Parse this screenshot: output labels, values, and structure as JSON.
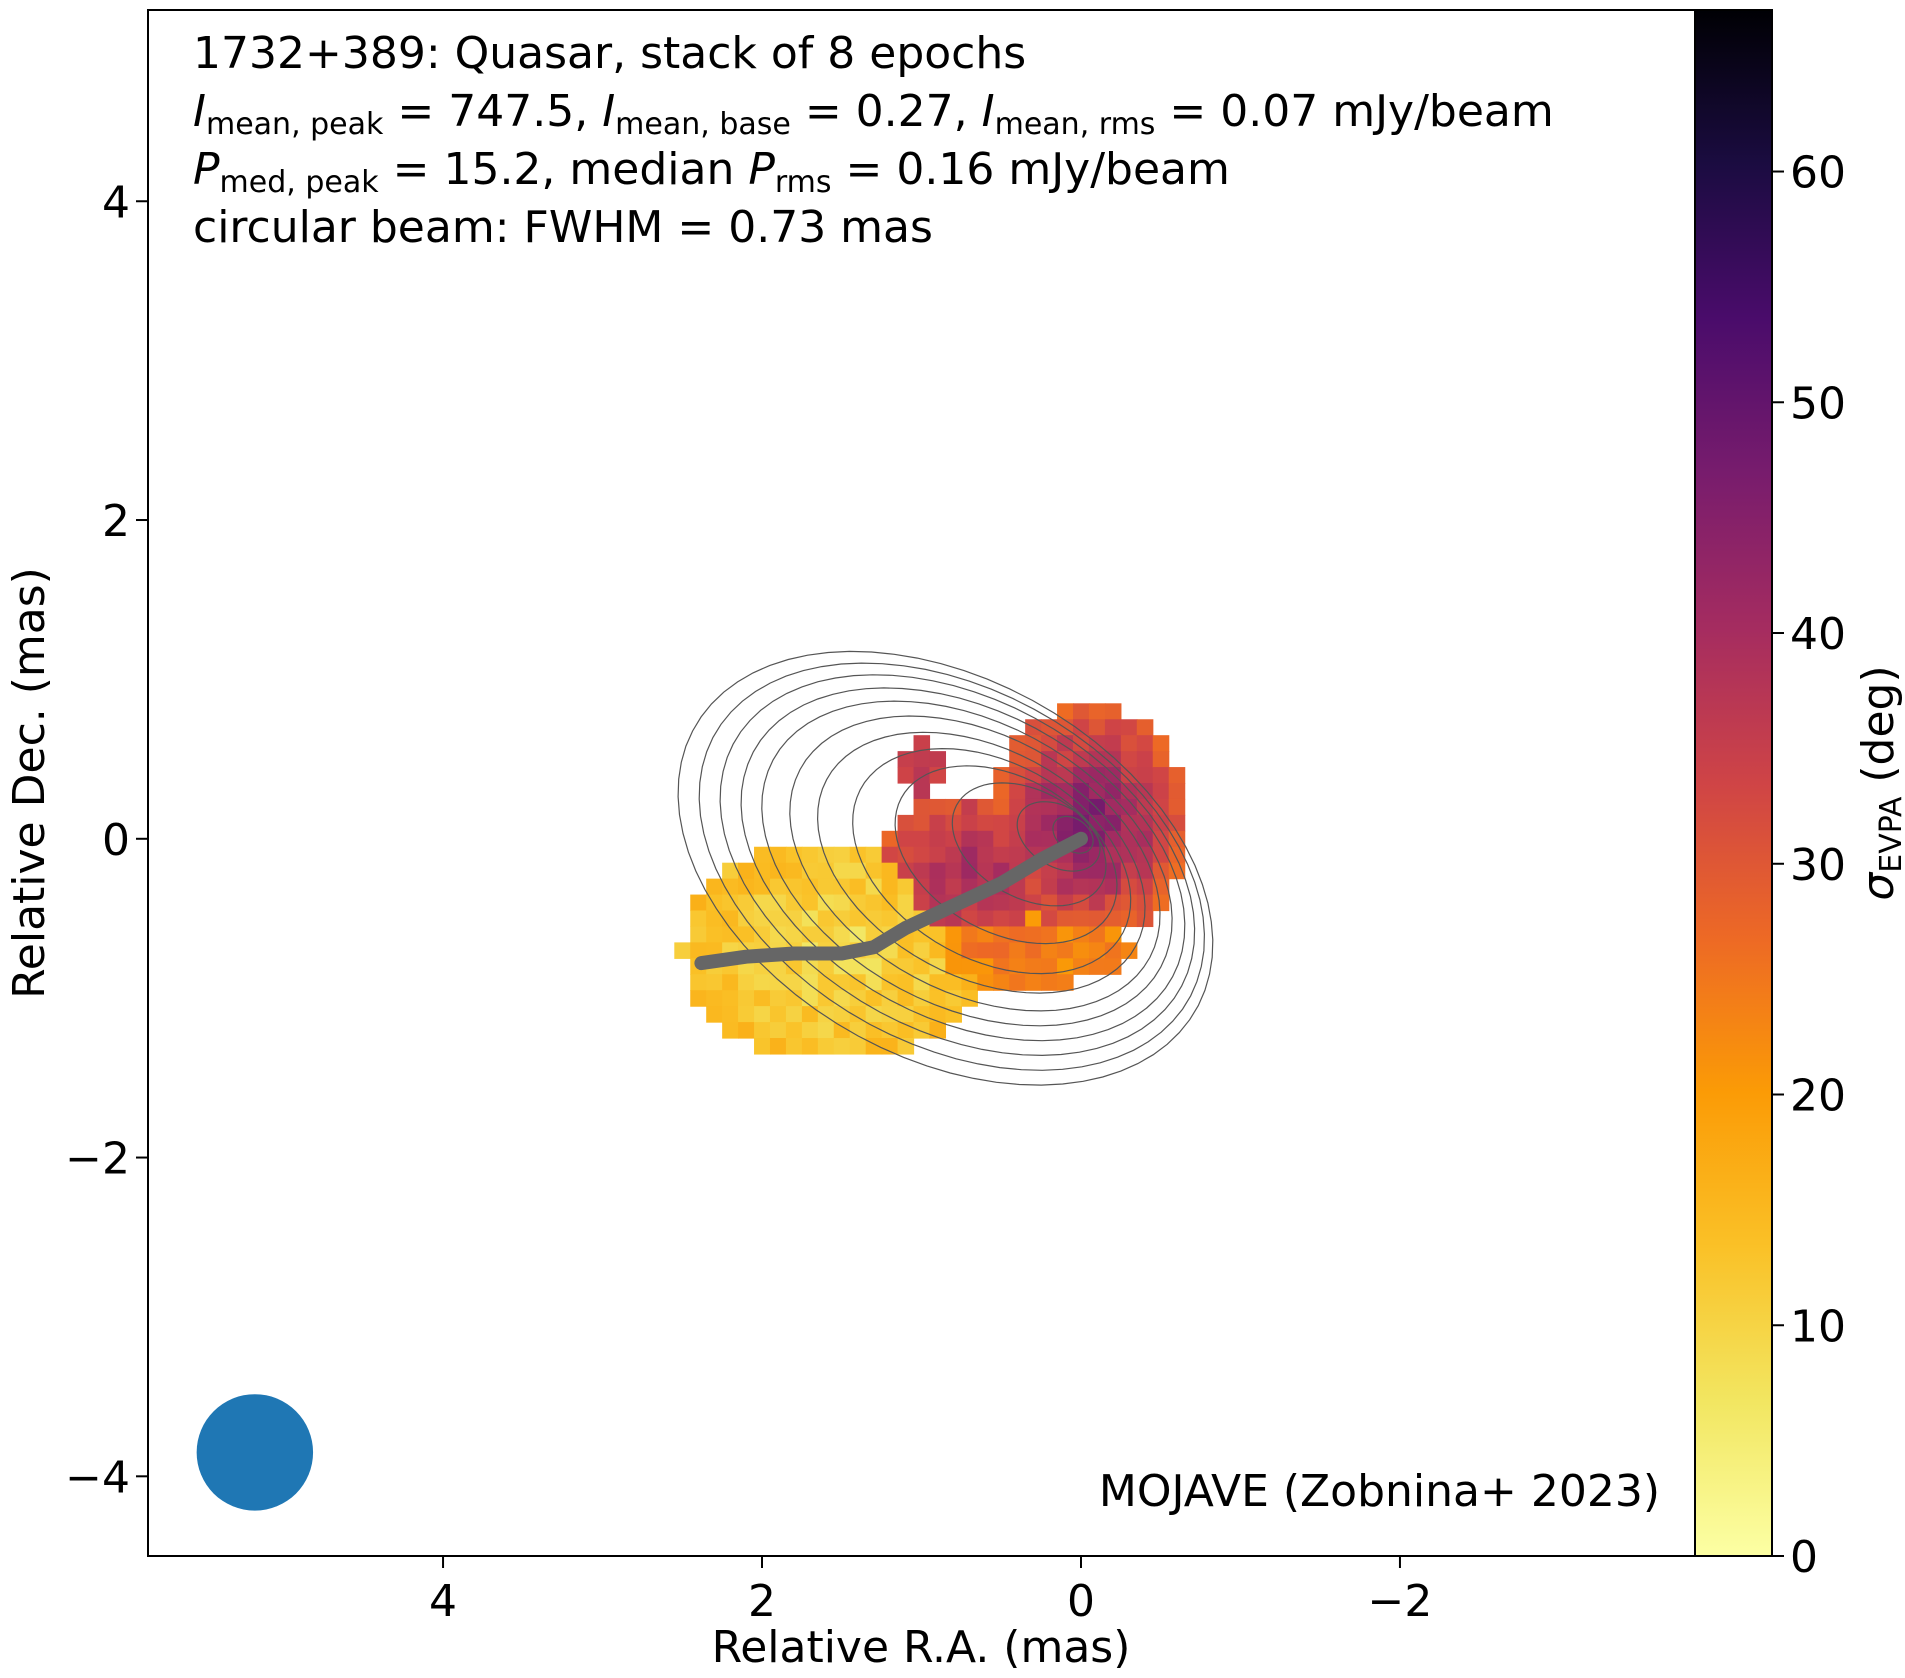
{
  "chart_data": {
    "type": "heatmap",
    "source": "1732+389",
    "annotation_lines": {
      "line1": "1732+389: Quasar, stack of 8 epochs",
      "line2": {
        "i1_sym": "I",
        "i1_sub": "mean, peak",
        "i1_val": " = 747.5, ",
        "i2_sym": "I",
        "i2_sub": "mean, base",
        "i2_val": " = 0.27, ",
        "i3_sym": "I",
        "i3_sub": "mean, rms",
        "i3_val": " = 0.07 mJy/beam"
      },
      "line3": {
        "p1_sym": "P",
        "p1_sub": "med, peak",
        "p1_val": " = 15.2, median ",
        "p2_sym": "P",
        "p2_sub": "rms",
        "p2_val": " = 0.16 mJy/beam"
      },
      "line4": "circular beam: FWHM = 0.73 mas"
    },
    "credit": "MOJAVE (Zobnina+ 2023)",
    "xlabel": "Relative R.A. (mas)",
    "ylabel": "Relative Dec. (mas)",
    "xlim": [
      5.85,
      -3.85
    ],
    "ylim": [
      -4.5,
      5.2
    ],
    "xticks": [
      4,
      2,
      0,
      -2
    ],
    "yticks": [
      -4,
      -2,
      0,
      2,
      4
    ],
    "x_tick_labels": [
      "4",
      "2",
      "0",
      "−2"
    ],
    "y_tick_labels": [
      "−4",
      "−2",
      "0",
      "2",
      "4"
    ],
    "colorbar": {
      "label_sym": "σ",
      "label_sub": "EVPA",
      "label_unit": " (deg)",
      "range": [
        0,
        67
      ],
      "ticks": [
        0,
        10,
        20,
        30,
        40,
        50,
        60
      ],
      "tick_labels": [
        "0",
        "10",
        "20",
        "30",
        "40",
        "50",
        "60"
      ],
      "colormap": "inferno_r"
    },
    "beam": {
      "x": 5.18,
      "y": -3.85,
      "fwhm_mas": 0.73,
      "color": "#1f77b4"
    },
    "ridge_line": {
      "color": "#666666",
      "points": [
        [
          2.38,
          -0.78
        ],
        [
          2.1,
          -0.74
        ],
        [
          1.8,
          -0.72
        ],
        [
          1.5,
          -0.72
        ],
        [
          1.3,
          -0.68
        ],
        [
          1.1,
          -0.56
        ],
        [
          0.8,
          -0.42
        ],
        [
          0.5,
          -0.28
        ],
        [
          0.25,
          -0.13
        ],
        [
          0.0,
          0.0
        ]
      ]
    },
    "contours": {
      "color": "#555555",
      "center": [
        0.0,
        0.02
      ],
      "levels": [
        {
          "ra_left": 2.85,
          "ra_right": -1.15,
          "dec_top": 1.28,
          "dec_bottom": -1.65
        },
        {
          "ra_left": 2.7,
          "ra_right": -1.08,
          "dec_top": 1.2,
          "dec_bottom": -1.55
        },
        {
          "ra_left": 2.55,
          "ra_right": -1.0,
          "dec_top": 1.12,
          "dec_bottom": -1.45
        },
        {
          "ra_left": 2.4,
          "ra_right": -0.92,
          "dec_top": 1.03,
          "dec_bottom": -1.35
        },
        {
          "ra_left": 2.25,
          "ra_right": -0.82,
          "dec_top": 0.94,
          "dec_bottom": -1.25
        },
        {
          "ra_left": 2.05,
          "ra_right": -0.72,
          "dec_top": 0.84,
          "dec_bottom": -1.15
        },
        {
          "ra_left": 1.85,
          "ra_right": -0.6,
          "dec_top": 0.73,
          "dec_bottom": -1.03
        },
        {
          "ra_left": 1.6,
          "ra_right": -0.48,
          "dec_top": 0.62,
          "dec_bottom": -0.9
        },
        {
          "ra_left": 1.3,
          "ra_right": -0.36,
          "dec_top": 0.5,
          "dec_bottom": -0.7
        },
        {
          "ra_left": 0.9,
          "ra_right": -0.25,
          "dec_top": 0.38,
          "dec_bottom": -0.45
        },
        {
          "ra_left": 0.45,
          "ra_right": -0.17,
          "dec_top": 0.25,
          "dec_bottom": -0.22
        },
        {
          "ra_left": 0.2,
          "ra_right": -0.1,
          "dec_top": 0.15,
          "dec_bottom": -0.1
        }
      ]
    },
    "heatmap_pixel_mas": 0.1,
    "heatmap_regions": [
      {
        "name": "core",
        "ra_center": -0.05,
        "dec_center": 0.1,
        "ra_halfwidth": 0.65,
        "dec_halfheight": 0.75,
        "value_center": 48,
        "value_edge": 28
      },
      {
        "name": "inner-jet",
        "ra_center": 0.7,
        "dec_center": -0.2,
        "ra_halfwidth": 0.55,
        "dec_halfheight": 0.5,
        "value_center": 42,
        "value_edge": 30
      },
      {
        "name": "lower-bridge",
        "ra_center": 0.35,
        "dec_center": -0.7,
        "ra_halfwidth": 0.7,
        "dec_halfheight": 0.22,
        "value_center": 25,
        "value_edge": 22
      },
      {
        "name": "outer-jet",
        "ra_center": 1.55,
        "dec_center": -0.7,
        "ra_halfwidth": 0.95,
        "dec_halfheight": 0.7,
        "value_center": 8,
        "value_edge": 14
      },
      {
        "name": "notch-top",
        "ra_center": 1.0,
        "dec_center": 0.45,
        "ra_halfwidth": 0.15,
        "dec_halfheight": 0.2,
        "value_center": 36,
        "value_edge": 34
      }
    ]
  }
}
